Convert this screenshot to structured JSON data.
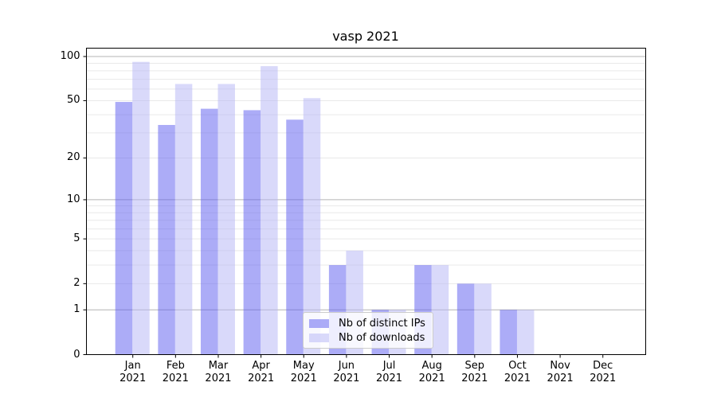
{
  "chart_data": {
    "type": "bar",
    "title": "vasp 2021",
    "categories": [
      "Jan",
      "Feb",
      "Mar",
      "Apr",
      "May",
      "Jun",
      "Jul",
      "Aug",
      "Sep",
      "Oct",
      "Nov",
      "Dec"
    ],
    "x_tick_year": "2021",
    "series": [
      {
        "name": "Nb of distinct IPs",
        "color": "rgba(90,90,240,0.5)",
        "solid_color": "#aaaaf5",
        "values": [
          49,
          34,
          44,
          43,
          37,
          3,
          1,
          3,
          2,
          1,
          0,
          0
        ]
      },
      {
        "name": "Nb of downloads",
        "color": "rgba(180,180,245,0.5)",
        "solid_color": "#d9d9fa",
        "values": [
          92,
          65,
          65,
          86,
          52,
          4,
          1,
          3,
          2,
          1,
          0,
          0
        ]
      }
    ],
    "y_axis": {
      "scale": "log1p",
      "tick_labels": [
        "100",
        "50",
        "20",
        "10",
        "5",
        "2",
        "1",
        "0"
      ],
      "tick_values": [
        100,
        50,
        20,
        10,
        5,
        2,
        1,
        0
      ],
      "major_grid_values": [
        100,
        10,
        1
      ],
      "minor_grid_values": [
        90,
        80,
        70,
        60,
        50,
        40,
        30,
        20,
        9,
        8,
        7,
        6,
        5,
        4,
        3,
        2
      ],
      "ylim_top": 100
    },
    "grid": {
      "major_color": "#b4b4b4",
      "minor_color": "#e9e9e9"
    },
    "legend_entries": [
      "Nb of distinct IPs",
      "Nb of downloads"
    ]
  }
}
